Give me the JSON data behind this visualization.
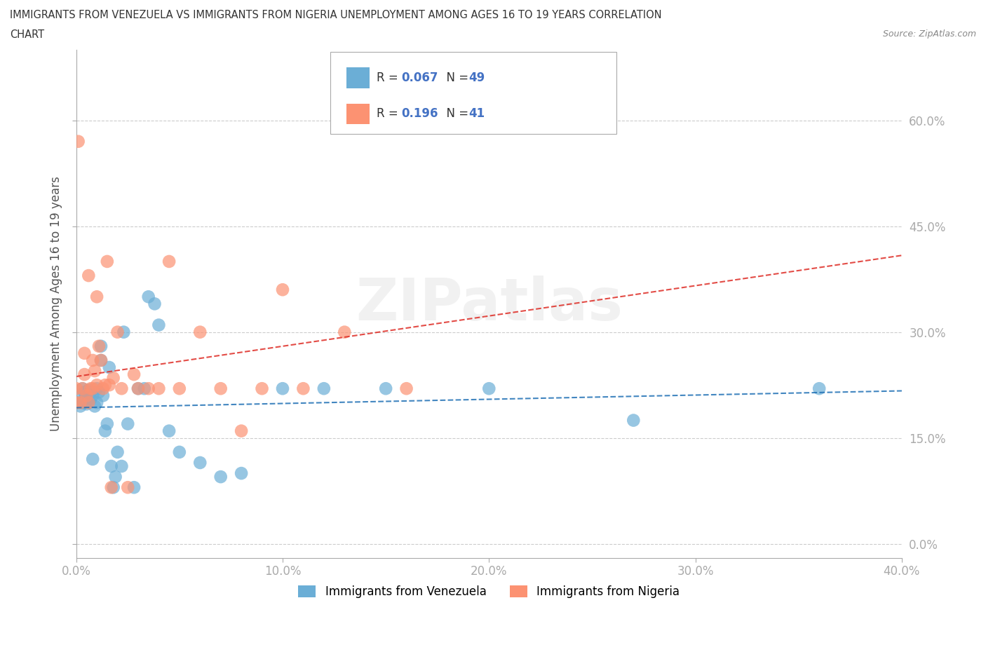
{
  "title_line1": "IMMIGRANTS FROM VENEZUELA VS IMMIGRANTS FROM NIGERIA UNEMPLOYMENT AMONG AGES 16 TO 19 YEARS CORRELATION",
  "title_line2": "CHART",
  "source": "Source: ZipAtlas.com",
  "ylabel": "Unemployment Among Ages 16 to 19 years",
  "xlim": [
    0.0,
    0.4
  ],
  "ylim": [
    -0.02,
    0.7
  ],
  "xticks": [
    0.0,
    0.1,
    0.2,
    0.3,
    0.4
  ],
  "xtick_labels": [
    "0.0%",
    "10.0%",
    "20.0%",
    "30.0%",
    "40.0%"
  ],
  "yticks": [
    0.0,
    0.15,
    0.3,
    0.45,
    0.6
  ],
  "ytick_labels": [
    "0.0%",
    "15.0%",
    "30.0%",
    "45.0%",
    "60.0%"
  ],
  "venezuela_R": 0.067,
  "venezuela_N": 49,
  "nigeria_R": 0.196,
  "nigeria_N": 41,
  "venezuela_color": "#6baed6",
  "nigeria_color": "#fc9272",
  "venezuela_trendline_color": "#2171b5",
  "nigeria_trendline_color": "#de2d26",
  "trend_dash": "--",
  "watermark": "ZIPatlas",
  "legend_label_venezuela": "Immigrants from Venezuela",
  "legend_label_nigeria": "Immigrants from Nigeria",
  "venezuela_x": [
    0.0,
    0.0,
    0.002,
    0.003,
    0.003,
    0.004,
    0.004,
    0.005,
    0.005,
    0.006,
    0.006,
    0.007,
    0.007,
    0.008,
    0.008,
    0.009,
    0.01,
    0.01,
    0.011,
    0.012,
    0.012,
    0.013,
    0.014,
    0.015,
    0.016,
    0.017,
    0.018,
    0.019,
    0.02,
    0.022,
    0.023,
    0.025,
    0.028,
    0.03,
    0.033,
    0.035,
    0.038,
    0.04,
    0.045,
    0.05,
    0.06,
    0.07,
    0.08,
    0.1,
    0.12,
    0.15,
    0.2,
    0.27,
    0.36
  ],
  "venezuela_y": [
    0.2,
    0.21,
    0.195,
    0.2,
    0.22,
    0.205,
    0.215,
    0.198,
    0.21,
    0.202,
    0.218,
    0.205,
    0.215,
    0.12,
    0.21,
    0.195,
    0.2,
    0.22,
    0.215,
    0.26,
    0.28,
    0.21,
    0.16,
    0.17,
    0.25,
    0.11,
    0.08,
    0.095,
    0.13,
    0.11,
    0.3,
    0.17,
    0.08,
    0.22,
    0.22,
    0.35,
    0.34,
    0.31,
    0.16,
    0.13,
    0.115,
    0.095,
    0.1,
    0.22,
    0.22,
    0.22,
    0.22,
    0.175,
    0.22
  ],
  "nigeria_x": [
    0.0,
    0.0,
    0.001,
    0.002,
    0.003,
    0.004,
    0.004,
    0.005,
    0.006,
    0.006,
    0.007,
    0.008,
    0.008,
    0.009,
    0.01,
    0.01,
    0.011,
    0.012,
    0.013,
    0.014,
    0.015,
    0.016,
    0.017,
    0.018,
    0.02,
    0.022,
    0.025,
    0.028,
    0.03,
    0.035,
    0.04,
    0.045,
    0.05,
    0.06,
    0.07,
    0.08,
    0.09,
    0.1,
    0.11,
    0.13,
    0.16
  ],
  "nigeria_y": [
    0.2,
    0.22,
    0.57,
    0.2,
    0.22,
    0.24,
    0.27,
    0.21,
    0.2,
    0.38,
    0.22,
    0.26,
    0.22,
    0.245,
    0.225,
    0.35,
    0.28,
    0.26,
    0.22,
    0.225,
    0.4,
    0.225,
    0.08,
    0.235,
    0.3,
    0.22,
    0.08,
    0.24,
    0.22,
    0.22,
    0.22,
    0.4,
    0.22,
    0.3,
    0.22,
    0.16,
    0.22,
    0.36,
    0.22,
    0.3,
    0.22
  ]
}
